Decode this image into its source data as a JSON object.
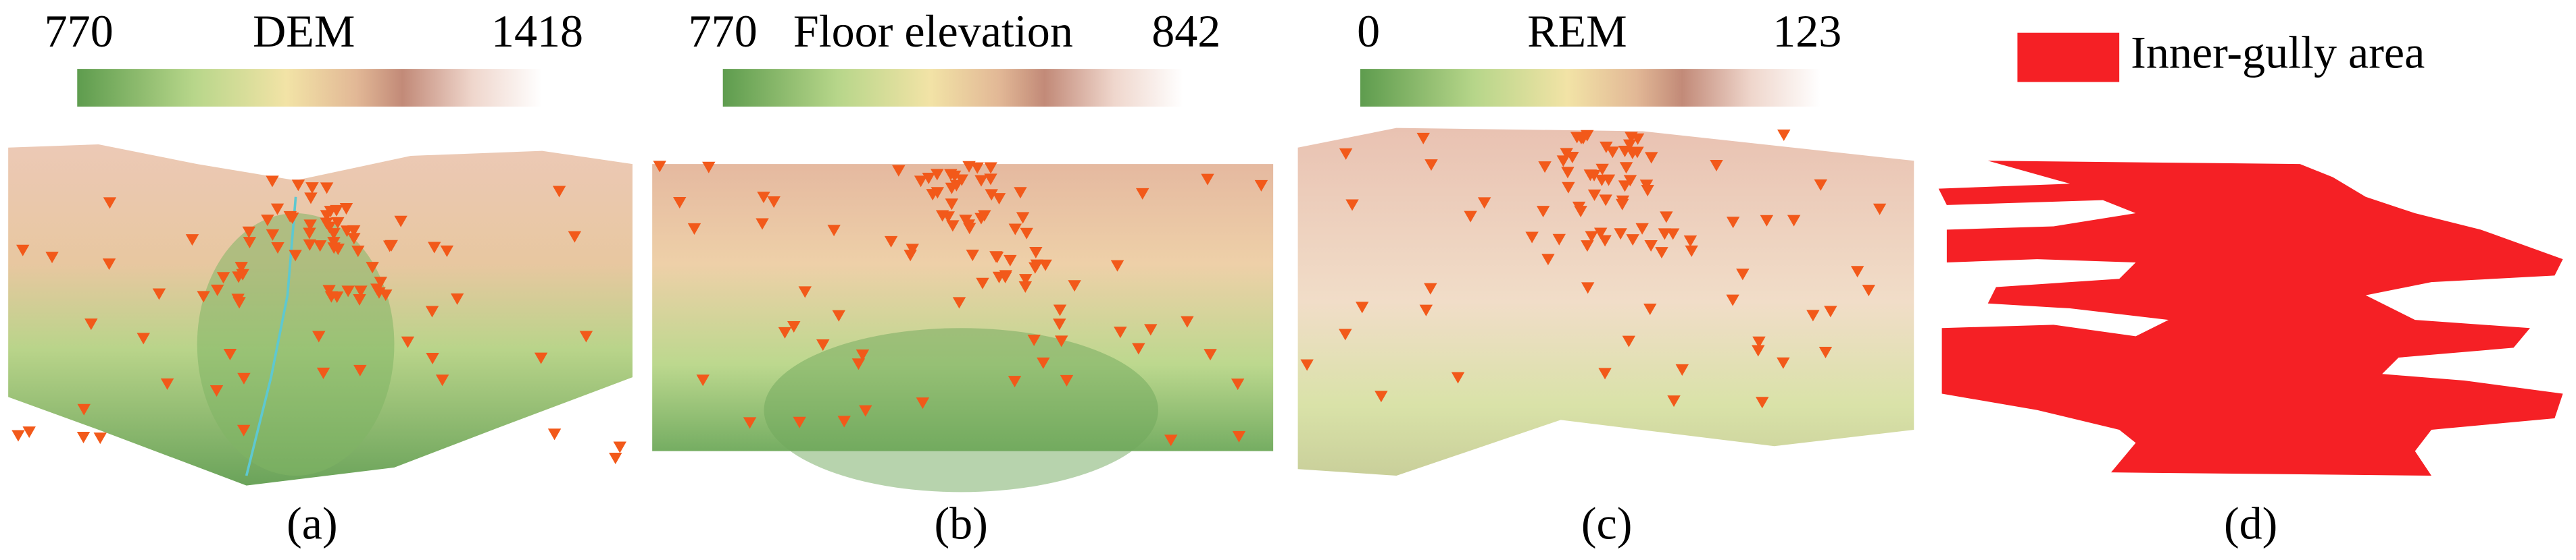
{
  "panels": [
    {
      "legend": {
        "min": "770",
        "title": "DEM",
        "max": "1418"
      },
      "caption": "(a)"
    },
    {
      "legend": {
        "min": "770",
        "title": "Floor elevation",
        "max": "842"
      },
      "caption": "(b)"
    },
    {
      "legend": {
        "min": "0",
        "title": "REM",
        "max": "123"
      },
      "caption": "(c)"
    },
    {
      "legend": {
        "label": "Inner-gully area"
      },
      "caption": "(d)"
    }
  ]
}
